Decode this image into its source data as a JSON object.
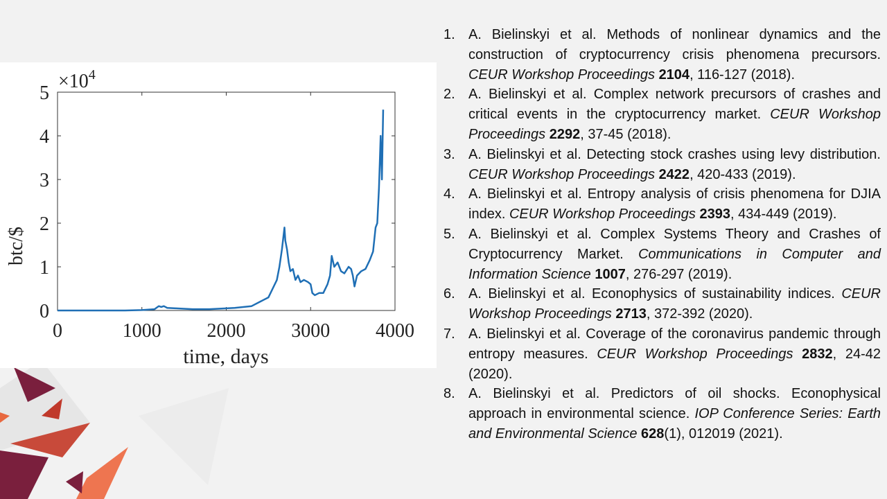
{
  "chart_data": {
    "type": "line",
    "xlabel": "time, days",
    "ylabel": "btc/$",
    "y_multiplier": {
      "base": "×10",
      "exponent": "4"
    },
    "xlim": [
      0,
      4000
    ],
    "xticks": [
      0,
      1000,
      2000,
      3000,
      4000
    ],
    "ylim": [
      0,
      5
    ],
    "yticks": [
      0,
      1,
      2,
      3,
      4,
      5
    ],
    "x": [
      0,
      200,
      400,
      600,
      800,
      1000,
      1150,
      1200,
      1230,
      1260,
      1300,
      1400,
      1500,
      1600,
      1700,
      1800,
      1900,
      2000,
      2100,
      2200,
      2300,
      2400,
      2500,
      2550,
      2600,
      2630,
      2660,
      2690,
      2700,
      2720,
      2740,
      2760,
      2790,
      2820,
      2850,
      2880,
      2920,
      2970,
      3000,
      3020,
      3050,
      3100,
      3150,
      3200,
      3230,
      3250,
      3280,
      3320,
      3360,
      3400,
      3450,
      3480,
      3500,
      3520,
      3550,
      3600,
      3650,
      3700,
      3740,
      3770,
      3790,
      3810,
      3830,
      3845,
      3860
    ],
    "series": [
      {
        "color": "#1f6fb5",
        "values": [
          0,
          0,
          0,
          0,
          0,
          0.01,
          0.03,
          0.1,
          0.08,
          0.1,
          0.06,
          0.05,
          0.04,
          0.03,
          0.03,
          0.03,
          0.04,
          0.05,
          0.06,
          0.08,
          0.1,
          0.2,
          0.3,
          0.5,
          0.7,
          1.0,
          1.4,
          1.9,
          1.6,
          1.4,
          1.1,
          0.9,
          0.95,
          0.7,
          0.8,
          0.65,
          0.7,
          0.65,
          0.6,
          0.4,
          0.35,
          0.4,
          0.4,
          0.6,
          0.8,
          1.25,
          1.0,
          1.1,
          0.9,
          0.85,
          1.0,
          0.95,
          0.8,
          0.55,
          0.8,
          0.9,
          0.95,
          1.15,
          1.35,
          1.9,
          2.0,
          2.8,
          4.0,
          3.0,
          4.6
        ]
      }
    ]
  },
  "references": [
    {
      "number": "1.",
      "text": "A. Bielinskyi et al. Methods of nonlinear dynamics and the construction of cryptocurrency crisis phenomena precursors.",
      "journal": "CEUR Workshop Proceedings",
      "volume": "2104",
      "rest": ", 116-127 (2018)."
    },
    {
      "number": "2.",
      "text": "A. Bielinskyi et al. Complex network precursors of crashes and critical events in the cryptocurrency market.",
      "journal": "CEUR Workshop Proceedings",
      "volume": "2292",
      "rest": ", 37-45 (2018)."
    },
    {
      "number": "3.",
      "text": "A. Bielinskyi et al. Detecting stock crashes using levy distribution.",
      "journal": "CEUR Workshop Proceedings",
      "volume": "2422",
      "rest": ", 420-433 (2019)."
    },
    {
      "number": "4.",
      "text": "A. Bielinskyi et al. Entropy analysis of crisis phenomena for DJIA index.",
      "journal": "CEUR Workshop Proceedings",
      "volume": "2393",
      "rest": ", 434-449 (2019)."
    },
    {
      "number": "5.",
      "text": "A. Bielinskyi et al. Complex Systems Theory and Crashes of Cryptocurrency Market.",
      "journal": "Communications in Computer and Information Science",
      "volume": "1007",
      "rest": ", 276-297 (2019)."
    },
    {
      "number": "6.",
      "text": "A. Bielinskyi et al. Econophysics of sustainability indices.",
      "journal": "CEUR Workshop Proceedings",
      "volume": "2713",
      "rest": ", 372-392 (2020)."
    },
    {
      "number": "7.",
      "text": "A. Bielinskyi et al. Coverage of the coronavirus pandemic through entropy measures.",
      "journal": "CEUR Workshop Proceedings",
      "volume": "2832",
      "rest": ", 24-42 (2020)."
    },
    {
      "number": "8.",
      "text": "A. Bielinskyi et al. Predictors of oil shocks. Econophysical approach in environmental science.",
      "journal": "IOP Conference Series: Earth and Environmental Science",
      "volume": "628",
      "rest": "(1), 012019 (2021)."
    }
  ]
}
